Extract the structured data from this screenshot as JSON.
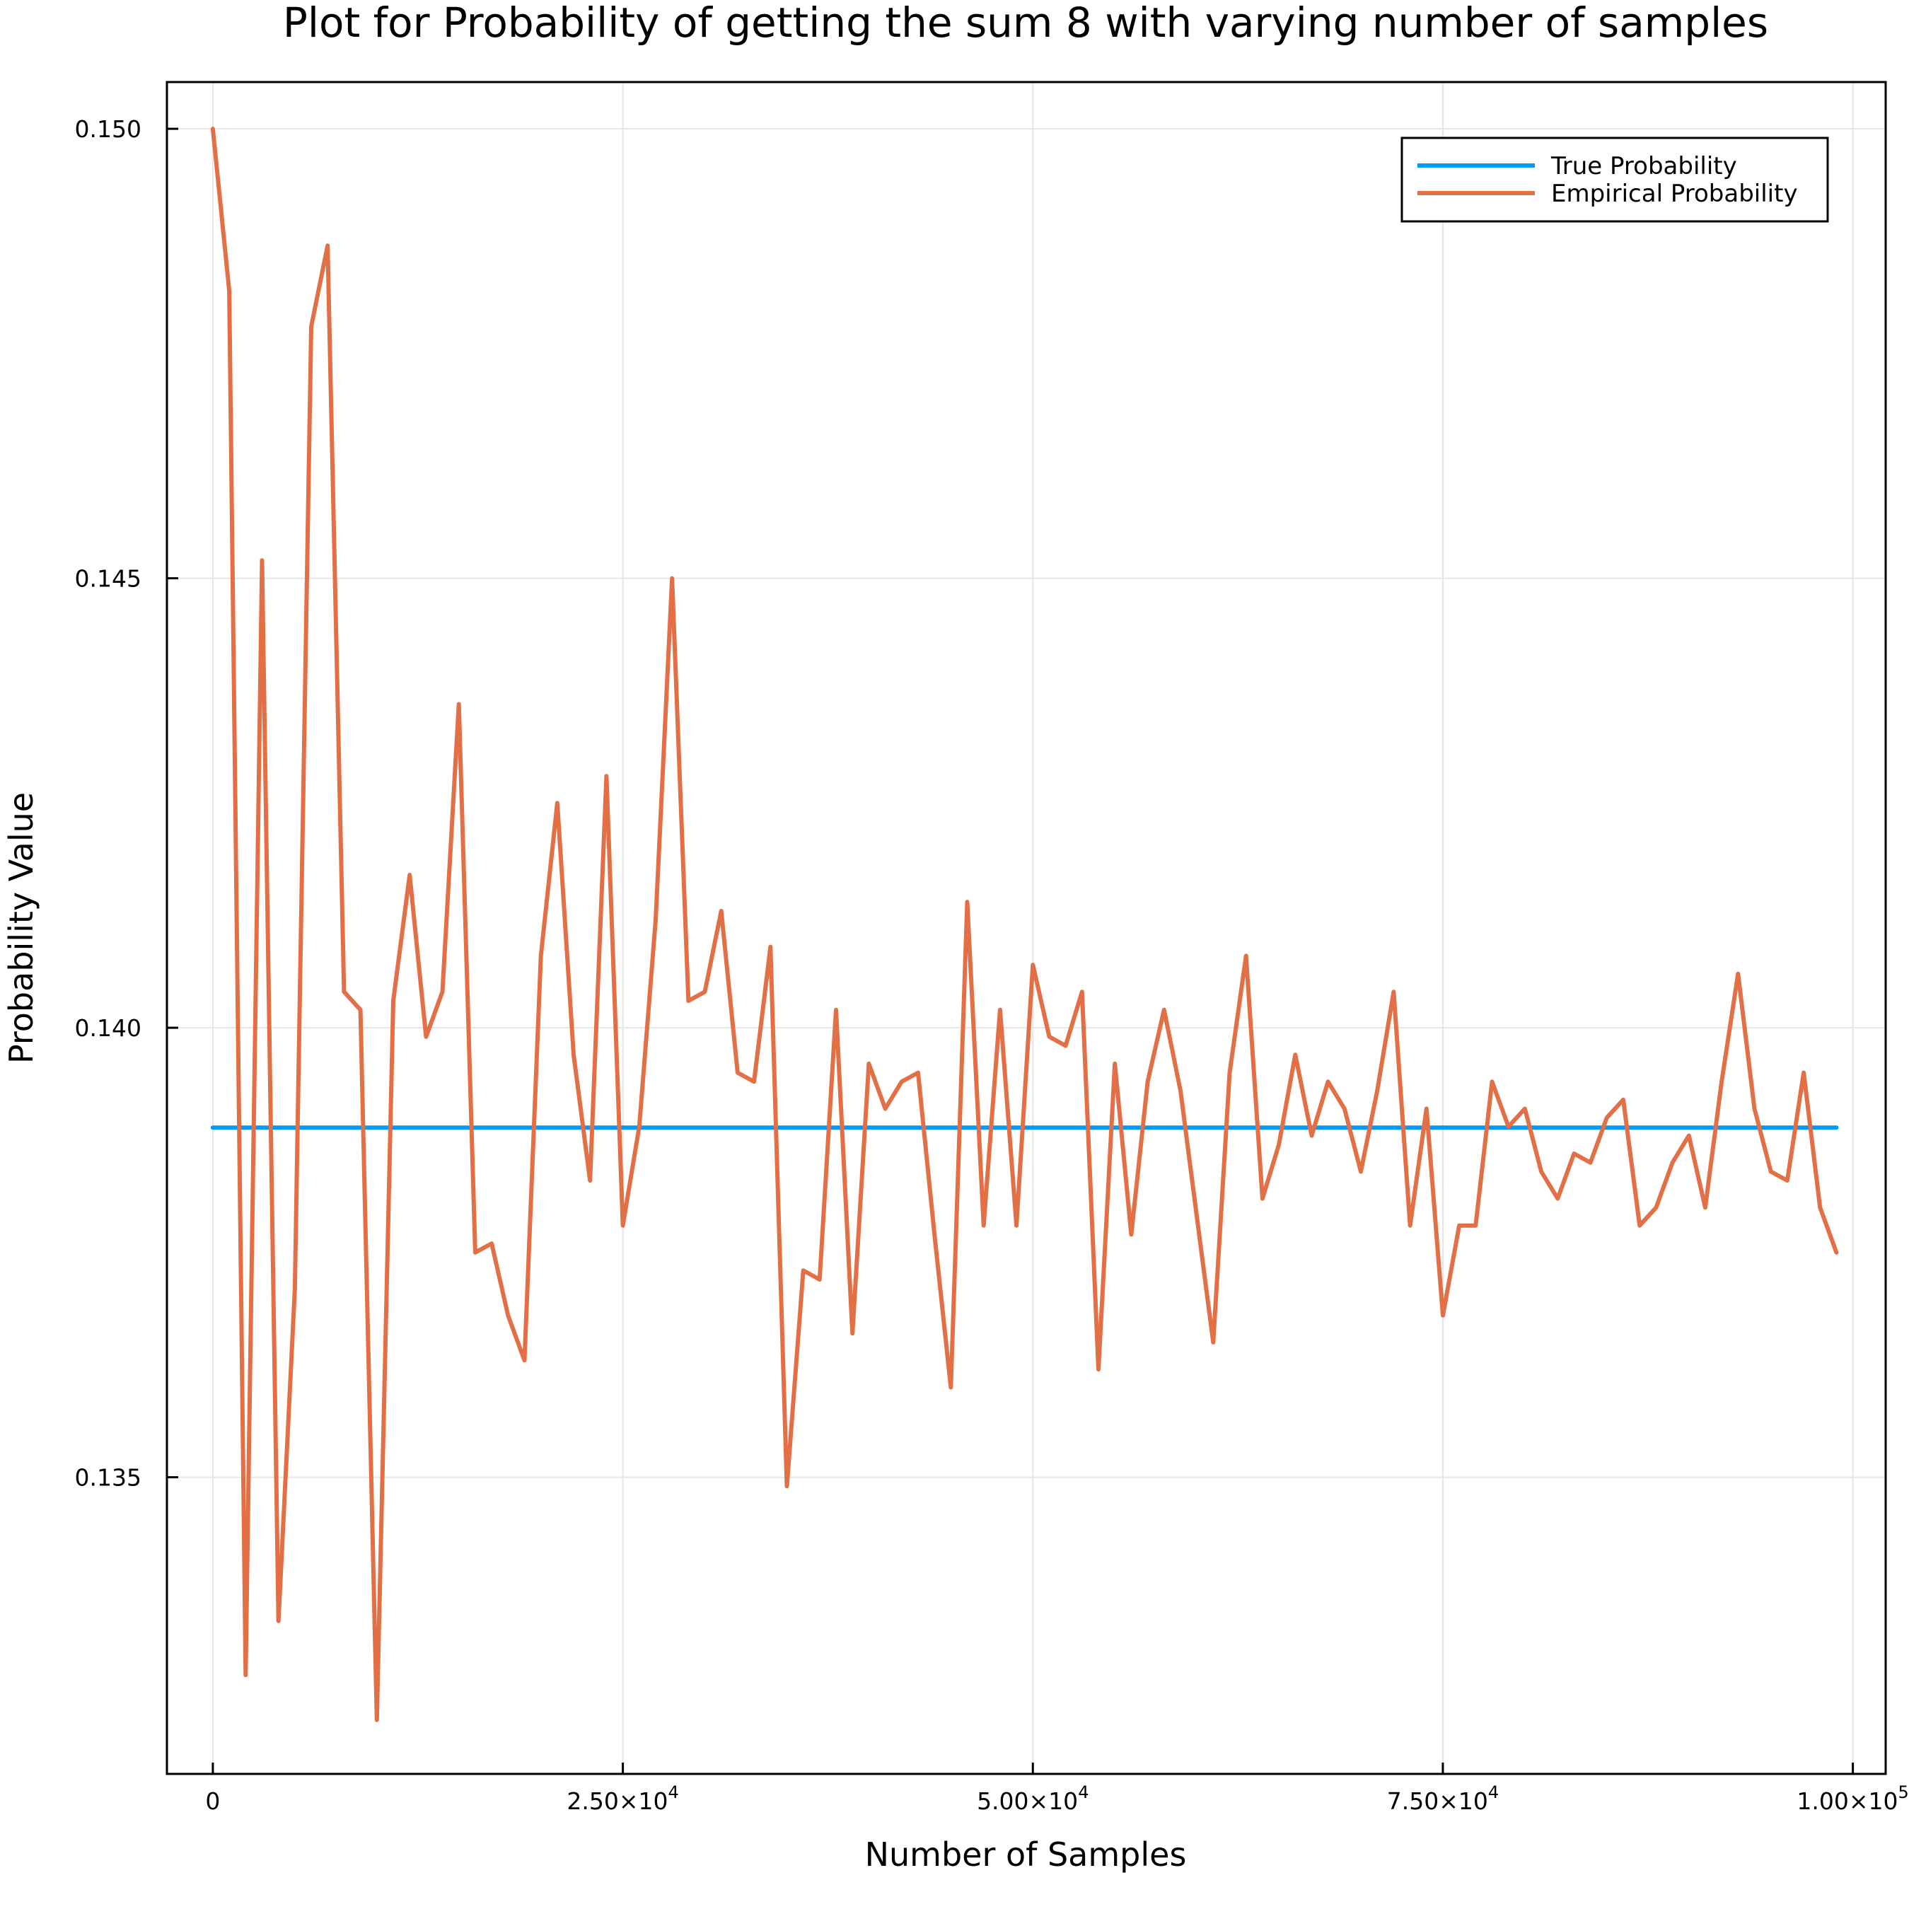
{
  "chart_data": {
    "type": "line",
    "title": "Plot for Probability of getting the sum 8 with varying number of samples",
    "xlabel": "Number of Samples",
    "ylabel": "Probability Value",
    "xlim": [
      -2800,
      102000
    ],
    "ylim": [
      0.1317,
      0.15052
    ],
    "xticks": [
      {
        "value": 0,
        "label": "0",
        "sup": ""
      },
      {
        "value": 25000,
        "label": "2.50×10",
        "sup": "4"
      },
      {
        "value": 50000,
        "label": "5.00×10",
        "sup": "4"
      },
      {
        "value": 75000,
        "label": "7.50×10",
        "sup": "4"
      },
      {
        "value": 100000,
        "label": "1.00×10",
        "sup": "5"
      }
    ],
    "yticks": [
      {
        "value": 0.135,
        "label": "0.135"
      },
      {
        "value": 0.14,
        "label": "0.140"
      },
      {
        "value": 0.145,
        "label": "0.145"
      },
      {
        "value": 0.15,
        "label": "0.150"
      }
    ],
    "grid": true,
    "legend_position": "top-right",
    "series": [
      {
        "name": "True Probability",
        "color": "#009af9",
        "x": [
          0,
          99000
        ],
        "y": [
          0.13889,
          0.13889
        ]
      },
      {
        "name": "Empirical Probability",
        "color": "#e26f46",
        "x": [
          0,
          1000,
          2000,
          3000,
          4000,
          5000,
          6000,
          7000,
          8000,
          9000,
          10000,
          11000,
          12000,
          13000,
          14000,
          15000,
          16000,
          17000,
          18000,
          19000,
          20000,
          21000,
          22000,
          23000,
          24000,
          25000,
          26000,
          27000,
          28000,
          29000,
          30000,
          31000,
          32000,
          33000,
          34000,
          35000,
          36000,
          37000,
          38000,
          39000,
          40000,
          41000,
          42000,
          43000,
          44000,
          45000,
          46000,
          47000,
          48000,
          49000,
          50000,
          51000,
          52000,
          53000,
          54000,
          55000,
          56000,
          57000,
          58000,
          59000,
          60000,
          61000,
          62000,
          63000,
          64000,
          65000,
          66000,
          67000,
          68000,
          69000,
          70000,
          71000,
          72000,
          73000,
          74000,
          75000,
          76000,
          77000,
          78000,
          79000,
          80000,
          81000,
          82000,
          83000,
          84000,
          85000,
          86000,
          87000,
          88000,
          89000,
          90000,
          91000,
          92000,
          93000,
          94000,
          95000,
          96000,
          97000,
          98000,
          99000
        ],
        "y": [
          0.15,
          0.1482,
          0.1328,
          0.1452,
          0.1334,
          0.1371,
          0.1478,
          0.1487,
          0.1404,
          0.1402,
          0.1323,
          0.1403,
          0.1417,
          0.1399,
          0.1404,
          0.1436,
          0.1375,
          0.1376,
          0.1368,
          0.1363,
          0.1408,
          0.1425,
          0.1397,
          0.1383,
          0.1428,
          0.1378,
          0.1389,
          0.1412,
          0.145,
          0.1403,
          0.1404,
          0.1413,
          0.1395,
          0.1394,
          0.1409,
          0.1349,
          0.1373,
          0.1372,
          0.1402,
          0.1366,
          0.1396,
          0.1391,
          0.1394,
          0.1395,
          0.1377,
          0.136,
          0.1414,
          0.1378,
          0.1402,
          0.1378,
          0.1407,
          0.1399,
          0.1398,
          0.1404,
          0.1362,
          0.1396,
          0.1377,
          0.1394,
          0.1402,
          0.1393,
          0.1379,
          0.1365,
          0.1395,
          0.1408,
          0.1381,
          0.1387,
          0.1397,
          0.1388,
          0.1394,
          0.1391,
          0.1384,
          0.1393,
          0.1404,
          0.1378,
          0.1391,
          0.1368,
          0.1378,
          0.1378,
          0.1394,
          0.1389,
          0.1391,
          0.1384,
          0.1381,
          0.1386,
          0.1385,
          0.139,
          0.1392,
          0.1378,
          0.138,
          0.1385,
          0.1388,
          0.138,
          0.1394,
          0.1406,
          0.1391,
          0.1384,
          0.1383,
          0.1395,
          0.138,
          0.1375
        ]
      }
    ]
  }
}
